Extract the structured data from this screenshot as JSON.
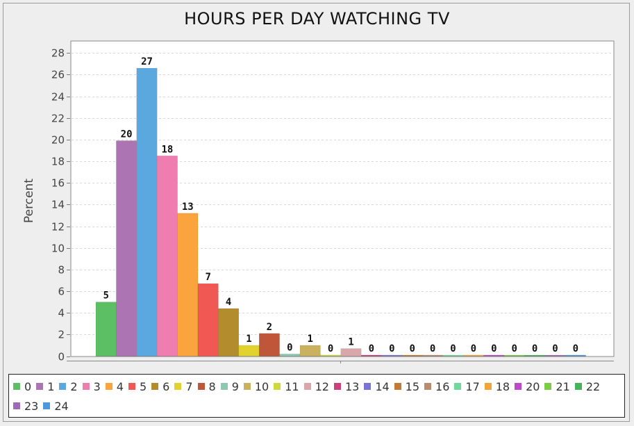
{
  "chart_data": {
    "type": "bar",
    "title": "HOURS PER DAY WATCHING TV",
    "xlabel": "",
    "ylabel": "Percent",
    "ylim": [
      0,
      29
    ],
    "yticks": [
      0,
      2,
      4,
      6,
      8,
      10,
      12,
      14,
      16,
      18,
      20,
      22,
      24,
      26,
      28
    ],
    "grid": true,
    "legend_position": "bottom",
    "series": [
      {
        "name": "0",
        "value": 5.0,
        "label": "5",
        "color": "#5cbf64"
      },
      {
        "name": "1",
        "value": 19.9,
        "label": "20",
        "color": "#ad74b3"
      },
      {
        "name": "2",
        "value": 26.6,
        "label": "27",
        "color": "#5ba8de"
      },
      {
        "name": "3",
        "value": 18.5,
        "label": "18",
        "color": "#f07daf"
      },
      {
        "name": "4",
        "value": 13.2,
        "label": "13",
        "color": "#fba33d"
      },
      {
        "name": "5",
        "value": 6.7,
        "label": "7",
        "color": "#ef5853"
      },
      {
        "name": "6",
        "value": 4.4,
        "label": "4",
        "color": "#b38d2d"
      },
      {
        "name": "7",
        "value": 1.0,
        "label": "1",
        "color": "#e1d22f"
      },
      {
        "name": "8",
        "value": 2.1,
        "label": "2",
        "color": "#c05639"
      },
      {
        "name": "9",
        "value": 0.2,
        "label": "0",
        "color": "#8ec8b0"
      },
      {
        "name": "10",
        "value": 1.0,
        "label": "1",
        "color": "#c9b15e"
      },
      {
        "name": "11",
        "value": 0.1,
        "label": "0",
        "color": "#cdd83a"
      },
      {
        "name": "12",
        "value": 0.7,
        "label": "1",
        "color": "#d9a6aa"
      },
      {
        "name": "13",
        "value": 0.1,
        "label": "0",
        "color": "#cc3f7d"
      },
      {
        "name": "14",
        "value": 0.1,
        "label": "0",
        "color": "#7b73d6"
      },
      {
        "name": "15",
        "value": 0.1,
        "label": "0",
        "color": "#c17b34"
      },
      {
        "name": "16",
        "value": 0.1,
        "label": "0",
        "color": "#b98a70"
      },
      {
        "name": "17",
        "value": 0.0,
        "label": "0",
        "color": "#6fd99a"
      },
      {
        "name": "18",
        "value": 0.1,
        "label": "0",
        "color": "#f2a43c"
      },
      {
        "name": "20",
        "value": 0.1,
        "label": "0",
        "color": "#bb49c9"
      },
      {
        "name": "21",
        "value": 0.0,
        "label": "0",
        "color": "#7ccc46"
      },
      {
        "name": "22",
        "value": 0.0,
        "label": "0",
        "color": "#45b35a"
      },
      {
        "name": "23",
        "value": 0.0,
        "label": "0",
        "color": "#a06bb6"
      },
      {
        "name": "24",
        "value": 0.1,
        "label": "0",
        "color": "#4f97dd"
      }
    ]
  }
}
